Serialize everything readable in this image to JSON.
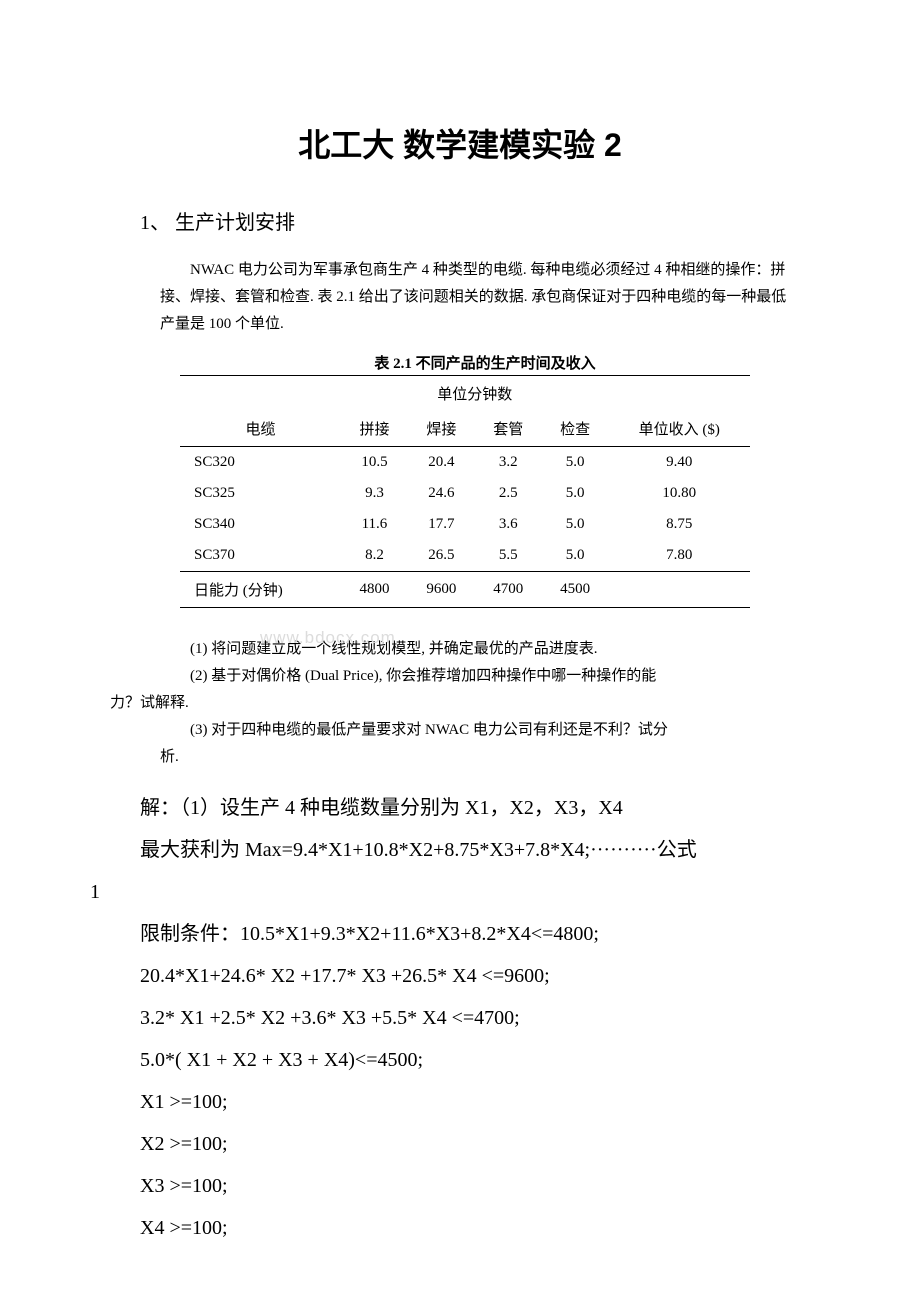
{
  "title": "北工大 数学建模实验 2",
  "section": "1、 生产计划安排",
  "intro": "NWAC 电力公司为军事承包商生产 4 种类型的电缆. 每种电缆必须经过 4 种相继的操作：拼接、焊接、套管和检查. 表 2.1 给出了该问题相关的数据. 承包商保证对于四种电缆的每一种最低产量是 100 个单位.",
  "table": {
    "caption": "表 2.1  不同产品的生产时间及收入",
    "group_header": "单位分钟数",
    "headers": [
      "电缆",
      "拼接",
      "焊接",
      "套管",
      "检查",
      "单位收入 ($)"
    ],
    "rows": [
      [
        "SC320",
        "10.5",
        "20.4",
        "3.2",
        "5.0",
        "9.40"
      ],
      [
        "SC325",
        "9.3",
        "24.6",
        "2.5",
        "5.0",
        "10.80"
      ],
      [
        "SC340",
        "11.6",
        "17.7",
        "3.6",
        "5.0",
        "8.75"
      ],
      [
        "SC370",
        "8.2",
        "26.5",
        "5.5",
        "5.0",
        "7.80"
      ]
    ],
    "footer": [
      "日能力 (分钟)",
      "4800",
      "9600",
      "4700",
      "4500",
      ""
    ]
  },
  "questions": {
    "q1": "(1) 将问题建立成一个线性规划模型, 并确定最优的产品进度表.",
    "q2": "(2) 基于对偶价格 (Dual Price), 你会推荐增加四种操作中哪一种操作的能",
    "q2cont": "力？试解释.",
    "q3": "(3) 对于四种电缆的最低产量要求对 NWAC 电力公司有利还是不利？试分",
    "q3cont": "析."
  },
  "solution": {
    "line1": "解：（1）设生产 4 种电缆数量分别为 X1，X2，X3，X4",
    "line2": "最大获利为 Max=9.4*X1+10.8*X2+8.75*X3+7.8*X4;··········公式",
    "line2b": "1",
    "line3": "限制条件：10.5*X1+9.3*X2+11.6*X3+8.2*X4<=4800;",
    "line4": "20.4*X1+24.6* X2 +17.7* X3 +26.5* X4 <=9600;",
    "line5": "3.2* X1 +2.5* X2 +3.6* X3 +5.5* X4 <=4700;",
    "line6": "5.0*( X1 + X2 + X3 + X4)<=4500;",
    "line7": "X1 >=100;",
    "line8": "X2 >=100;",
    "line9": "X3 >=100;",
    "line10": "X4 >=100;"
  },
  "watermark": "www.bdocx.com"
}
